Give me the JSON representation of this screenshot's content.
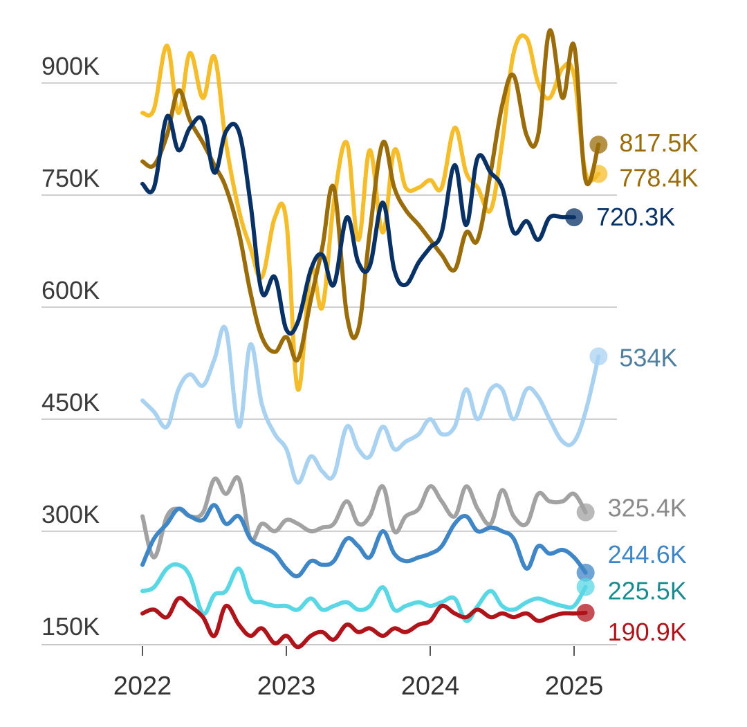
{
  "chart_data": {
    "type": "line",
    "title": "",
    "xlabel": "",
    "ylabel": "",
    "x_range": [
      2022.0,
      2025.25
    ],
    "ylim": [
      135000,
      1000000
    ],
    "y_ticks": [
      150000,
      300000,
      450000,
      600000,
      750000,
      900000
    ],
    "y_tick_labels": [
      "150K",
      "300K",
      "450K",
      "600K",
      "750K",
      "900K"
    ],
    "x_ticks": [
      2022,
      2023,
      2024,
      2025
    ],
    "x_tick_labels": [
      "2022",
      "2023",
      "2024",
      "2025"
    ],
    "grid": true,
    "series": [
      {
        "name": "series-gold",
        "color": "#f6bd2b",
        "label_color": "#9a6d0a",
        "end_label": "778.4K",
        "x": [
          2022.0,
          2022.08,
          2022.17,
          2022.25,
          2022.33,
          2022.42,
          2022.5,
          2022.58,
          2022.67,
          2022.75,
          2022.83,
          2022.92,
          2023.0,
          2023.08,
          2023.17,
          2023.25,
          2023.33,
          2023.42,
          2023.5,
          2023.58,
          2023.67,
          2023.75,
          2023.83,
          2023.92,
          2024.0,
          2024.08,
          2024.17,
          2024.25,
          2024.33,
          2024.42,
          2024.5,
          2024.58,
          2024.67,
          2024.75,
          2024.83,
          2024.92,
          2025.0,
          2025.08,
          2025.17
        ],
        "y": [
          860000,
          865000,
          950000,
          860000,
          940000,
          880000,
          935000,
          820000,
          730000,
          680000,
          640000,
          720000,
          715000,
          490000,
          650000,
          600000,
          740000,
          820000,
          690000,
          810000,
          700000,
          810000,
          760000,
          760000,
          770000,
          760000,
          840000,
          780000,
          760000,
          730000,
          820000,
          940000,
          960000,
          900000,
          880000,
          920000,
          910000,
          780000,
          778400
        ]
      },
      {
        "name": "series-brown",
        "color": "#9a6d0a",
        "label_color": "#9a6d0a",
        "end_label": "817.5K",
        "x": [
          2022.0,
          2022.08,
          2022.17,
          2022.25,
          2022.33,
          2022.42,
          2022.5,
          2022.58,
          2022.67,
          2022.75,
          2022.83,
          2022.92,
          2023.0,
          2023.08,
          2023.17,
          2023.25,
          2023.33,
          2023.42,
          2023.5,
          2023.58,
          2023.67,
          2023.75,
          2023.83,
          2023.92,
          2024.0,
          2024.08,
          2024.17,
          2024.25,
          2024.33,
          2024.42,
          2024.5,
          2024.58,
          2024.67,
          2024.75,
          2024.83,
          2024.92,
          2025.0,
          2025.08,
          2025.17
        ],
        "y": [
          795000,
          790000,
          830000,
          890000,
          850000,
          820000,
          790000,
          760000,
          700000,
          620000,
          560000,
          540000,
          560000,
          530000,
          610000,
          680000,
          760000,
          590000,
          570000,
          700000,
          820000,
          760000,
          730000,
          710000,
          690000,
          670000,
          650000,
          700000,
          690000,
          780000,
          870000,
          910000,
          830000,
          830000,
          970000,
          880000,
          950000,
          770000,
          817500
        ]
      },
      {
        "name": "series-navy",
        "color": "#083166",
        "label_color": "#083166",
        "end_label": "720.3K",
        "x": [
          2022.0,
          2022.08,
          2022.17,
          2022.25,
          2022.33,
          2022.42,
          2022.5,
          2022.58,
          2022.67,
          2022.75,
          2022.83,
          2022.92,
          2023.0,
          2023.08,
          2023.17,
          2023.25,
          2023.33,
          2023.42,
          2023.5,
          2023.58,
          2023.67,
          2023.75,
          2023.83,
          2023.92,
          2024.0,
          2024.08,
          2024.17,
          2024.25,
          2024.33,
          2024.42,
          2024.5,
          2024.58,
          2024.67,
          2024.75,
          2024.83,
          2024.92,
          2025.0
        ],
        "y": [
          765000,
          760000,
          855000,
          810000,
          840000,
          850000,
          780000,
          835000,
          835000,
          740000,
          620000,
          640000,
          570000,
          580000,
          650000,
          670000,
          630000,
          720000,
          660000,
          655000,
          740000,
          650000,
          630000,
          660000,
          680000,
          700000,
          790000,
          710000,
          800000,
          780000,
          760000,
          700000,
          715000,
          690000,
          720000,
          720300,
          720300
        ]
      },
      {
        "name": "series-lightblue",
        "color": "#a9d2f1",
        "label_color": "#4e7f9e",
        "end_label": "534K",
        "x": [
          2022.0,
          2022.08,
          2022.17,
          2022.25,
          2022.33,
          2022.42,
          2022.5,
          2022.58,
          2022.67,
          2022.75,
          2022.83,
          2022.92,
          2023.0,
          2023.08,
          2023.17,
          2023.25,
          2023.33,
          2023.42,
          2023.5,
          2023.58,
          2023.67,
          2023.75,
          2023.83,
          2023.92,
          2024.0,
          2024.08,
          2024.17,
          2024.25,
          2024.33,
          2024.42,
          2024.5,
          2024.58,
          2024.67,
          2024.75,
          2024.83,
          2024.92,
          2025.0,
          2025.08,
          2025.17
        ],
        "y": [
          475000,
          460000,
          440000,
          490000,
          510000,
          495000,
          530000,
          570000,
          440000,
          550000,
          470000,
          430000,
          410000,
          365000,
          400000,
          380000,
          375000,
          440000,
          410000,
          400000,
          440000,
          410000,
          420000,
          430000,
          450000,
          430000,
          440000,
          490000,
          450000,
          490000,
          490000,
          450000,
          490000,
          480000,
          450000,
          420000,
          420000,
          460000,
          534000
        ]
      },
      {
        "name": "series-gray",
        "color": "#a2a2a2",
        "label_color": "#8a8a8a",
        "end_label": "325.4K",
        "x": [
          2022.0,
          2022.08,
          2022.17,
          2022.25,
          2022.33,
          2022.42,
          2022.5,
          2022.58,
          2022.67,
          2022.75,
          2022.83,
          2022.92,
          2023.0,
          2023.08,
          2023.17,
          2023.25,
          2023.33,
          2023.42,
          2023.5,
          2023.58,
          2023.67,
          2023.75,
          2023.83,
          2023.92,
          2024.0,
          2024.08,
          2024.17,
          2024.25,
          2024.33,
          2024.42,
          2024.5,
          2024.58,
          2024.67,
          2024.75,
          2024.83,
          2024.92,
          2025.0,
          2025.08
        ],
        "y": [
          320000,
          265000,
          320000,
          330000,
          320000,
          325000,
          370000,
          350000,
          370000,
          290000,
          310000,
          300000,
          315000,
          310000,
          300000,
          305000,
          310000,
          340000,
          310000,
          320000,
          360000,
          300000,
          320000,
          330000,
          360000,
          340000,
          320000,
          360000,
          330000,
          310000,
          355000,
          320000,
          310000,
          350000,
          340000,
          340000,
          350000,
          325400
        ]
      },
      {
        "name": "series-mediumblue",
        "color": "#3f86c6",
        "label_color": "#3f86c6",
        "end_label": "244.6K",
        "x": [
          2022.0,
          2022.08,
          2022.17,
          2022.25,
          2022.33,
          2022.42,
          2022.5,
          2022.58,
          2022.67,
          2022.75,
          2022.83,
          2022.92,
          2023.0,
          2023.08,
          2023.17,
          2023.25,
          2023.33,
          2023.42,
          2023.5,
          2023.58,
          2023.67,
          2023.75,
          2023.83,
          2023.92,
          2024.0,
          2024.08,
          2024.17,
          2024.25,
          2024.33,
          2024.42,
          2024.5,
          2024.58,
          2024.67,
          2024.75,
          2024.83,
          2024.92,
          2025.0,
          2025.08
        ],
        "y": [
          255000,
          290000,
          310000,
          330000,
          320000,
          315000,
          335000,
          310000,
          320000,
          290000,
          280000,
          270000,
          250000,
          240000,
          260000,
          255000,
          260000,
          290000,
          280000,
          265000,
          300000,
          270000,
          260000,
          265000,
          270000,
          280000,
          310000,
          320000,
          300000,
          305000,
          300000,
          290000,
          250000,
          280000,
          270000,
          275000,
          265000,
          244600
        ]
      },
      {
        "name": "series-cyan",
        "color": "#5ad7e4",
        "label_color": "#1a8c90",
        "end_label": "225.5K",
        "x": [
          2022.0,
          2022.08,
          2022.17,
          2022.25,
          2022.33,
          2022.42,
          2022.5,
          2022.58,
          2022.67,
          2022.75,
          2022.83,
          2022.92,
          2023.0,
          2023.08,
          2023.17,
          2023.25,
          2023.33,
          2023.42,
          2023.5,
          2023.58,
          2023.67,
          2023.75,
          2023.83,
          2023.92,
          2024.0,
          2024.08,
          2024.17,
          2024.25,
          2024.33,
          2024.42,
          2024.5,
          2024.58,
          2024.67,
          2024.75,
          2024.83,
          2024.92,
          2025.0,
          2025.08
        ],
        "y": [
          220000,
          225000,
          250000,
          255000,
          240000,
          190000,
          215000,
          220000,
          250000,
          210000,
          205000,
          200000,
          200000,
          195000,
          210000,
          195000,
          200000,
          205000,
          195000,
          200000,
          225000,
          195000,
          200000,
          205000,
          200000,
          205000,
          210000,
          180000,
          200000,
          220000,
          200000,
          195000,
          205000,
          210000,
          205000,
          200000,
          200000,
          225500
        ]
      },
      {
        "name": "series-red",
        "color": "#b0141b",
        "label_color": "#b0141b",
        "end_label": "190.9K",
        "x": [
          2022.0,
          2022.08,
          2022.17,
          2022.25,
          2022.33,
          2022.42,
          2022.5,
          2022.58,
          2022.67,
          2022.75,
          2022.83,
          2022.92,
          2023.0,
          2023.08,
          2023.17,
          2023.25,
          2023.33,
          2023.42,
          2023.5,
          2023.58,
          2023.67,
          2023.75,
          2023.83,
          2023.92,
          2024.0,
          2024.08,
          2024.17,
          2024.25,
          2024.33,
          2024.42,
          2024.5,
          2024.58,
          2024.67,
          2024.75,
          2024.83,
          2024.92,
          2025.0,
          2025.08
        ],
        "y": [
          190000,
          195000,
          185000,
          210000,
          200000,
          185000,
          160000,
          200000,
          175000,
          160000,
          170000,
          150000,
          160000,
          145000,
          160000,
          165000,
          155000,
          175000,
          165000,
          170000,
          160000,
          170000,
          165000,
          175000,
          180000,
          200000,
          190000,
          185000,
          195000,
          185000,
          190000,
          185000,
          190000,
          180000,
          185000,
          190000,
          190000,
          190900
        ]
      }
    ]
  }
}
